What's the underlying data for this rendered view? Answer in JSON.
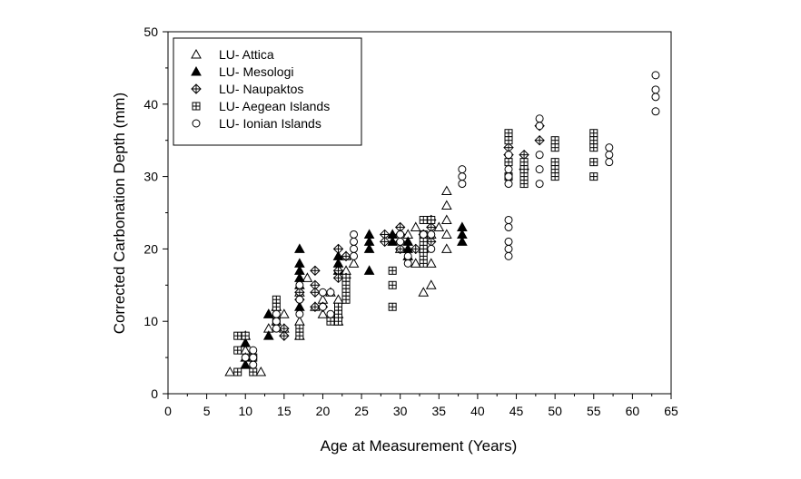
{
  "chart_data": {
    "type": "scatter",
    "title": "",
    "xlabel": "Age at Measurement (Years)",
    "ylabel": "Corrected Carbonation Depth (mm)",
    "xlim": [
      0,
      65
    ],
    "ylim": [
      0,
      50
    ],
    "xticks": [
      0,
      5,
      10,
      15,
      20,
      25,
      30,
      35,
      40,
      45,
      50,
      55,
      60,
      65
    ],
    "yticks": [
      0,
      10,
      20,
      30,
      40,
      50
    ],
    "grid": false,
    "legend_position": "top-left",
    "series": [
      {
        "name": "LU- Attica",
        "marker": "triangle-open",
        "points": [
          [
            8,
            3
          ],
          [
            10,
            8
          ],
          [
            10,
            6
          ],
          [
            12,
            3
          ],
          [
            13,
            11
          ],
          [
            13,
            9
          ],
          [
            14,
            10
          ],
          [
            15,
            11
          ],
          [
            15,
            9
          ],
          [
            17,
            14
          ],
          [
            17,
            10
          ],
          [
            17,
            8
          ],
          [
            18,
            16
          ],
          [
            19,
            12
          ],
          [
            20,
            11
          ],
          [
            20,
            13
          ],
          [
            21,
            14
          ],
          [
            22,
            13
          ],
          [
            22,
            11
          ],
          [
            23,
            19
          ],
          [
            23,
            17
          ],
          [
            24,
            18
          ],
          [
            30,
            20
          ],
          [
            31,
            22
          ],
          [
            32,
            18
          ],
          [
            32,
            23
          ],
          [
            33,
            14
          ],
          [
            33,
            20
          ],
          [
            34,
            15
          ],
          [
            34,
            18
          ],
          [
            34,
            22
          ],
          [
            35,
            23
          ],
          [
            36,
            20
          ],
          [
            36,
            22
          ],
          [
            36,
            24
          ],
          [
            36,
            26
          ],
          [
            36,
            28
          ]
        ]
      },
      {
        "name": "LU- Mesologi",
        "marker": "triangle-filled",
        "points": [
          [
            10,
            7
          ],
          [
            10,
            5
          ],
          [
            10,
            4
          ],
          [
            13,
            8
          ],
          [
            13,
            11
          ],
          [
            14,
            12
          ],
          [
            17,
            20
          ],
          [
            17,
            18
          ],
          [
            17,
            17
          ],
          [
            17,
            16
          ],
          [
            17,
            15
          ],
          [
            17,
            12
          ],
          [
            22,
            19
          ],
          [
            22,
            18
          ],
          [
            22,
            17
          ],
          [
            22,
            10
          ],
          [
            26,
            22
          ],
          [
            26,
            21
          ],
          [
            26,
            20
          ],
          [
            26,
            17
          ],
          [
            29,
            22
          ],
          [
            29,
            21
          ],
          [
            31,
            21
          ],
          [
            31,
            20
          ],
          [
            31,
            19
          ],
          [
            38,
            23
          ],
          [
            38,
            22
          ],
          [
            38,
            21
          ]
        ]
      },
      {
        "name": "LU- Naupaktos",
        "marker": "diamond-cross",
        "points": [
          [
            15,
            9
          ],
          [
            15,
            8
          ],
          [
            17,
            14
          ],
          [
            17,
            13
          ],
          [
            19,
            17
          ],
          [
            19,
            15
          ],
          [
            19,
            14
          ],
          [
            19,
            12
          ],
          [
            20,
            12
          ],
          [
            22,
            20
          ],
          [
            22,
            17
          ],
          [
            22,
            16
          ],
          [
            23,
            19
          ],
          [
            23,
            16
          ],
          [
            28,
            22
          ],
          [
            28,
            21
          ],
          [
            30,
            23
          ],
          [
            30,
            22
          ],
          [
            30,
            21
          ],
          [
            30,
            20
          ],
          [
            32,
            20
          ],
          [
            33,
            22
          ],
          [
            34,
            23
          ],
          [
            34,
            21
          ],
          [
            34,
            24
          ],
          [
            44,
            34
          ],
          [
            44,
            33
          ],
          [
            46,
            33
          ],
          [
            46,
            31
          ],
          [
            48,
            37
          ],
          [
            48,
            35
          ]
        ]
      },
      {
        "name": "LU- Aegean Islands",
        "marker": "square-cross",
        "points": [
          [
            9,
            8
          ],
          [
            9,
            6
          ],
          [
            9,
            3
          ],
          [
            10,
            8
          ],
          [
            11,
            5
          ],
          [
            11,
            3
          ],
          [
            14,
            13
          ],
          [
            14,
            12
          ],
          [
            14,
            10
          ],
          [
            17,
            9
          ],
          [
            17,
            8
          ],
          [
            21,
            10
          ],
          [
            22,
            12
          ],
          [
            22,
            11
          ],
          [
            22,
            10
          ],
          [
            23,
            16
          ],
          [
            23,
            15
          ],
          [
            23,
            14
          ],
          [
            23,
            13
          ],
          [
            29,
            17
          ],
          [
            29,
            15
          ],
          [
            29,
            12
          ],
          [
            33,
            24
          ],
          [
            33,
            22
          ],
          [
            33,
            21
          ],
          [
            33,
            20
          ],
          [
            33,
            19
          ],
          [
            33,
            18
          ],
          [
            34,
            24
          ],
          [
            44,
            36
          ],
          [
            44,
            35
          ],
          [
            44,
            32
          ],
          [
            44,
            30
          ],
          [
            46,
            32
          ],
          [
            46,
            31
          ],
          [
            46,
            30
          ],
          [
            46,
            29
          ],
          [
            50,
            35
          ],
          [
            50,
            34
          ],
          [
            50,
            32
          ],
          [
            50,
            31
          ],
          [
            50,
            30
          ],
          [
            55,
            36
          ],
          [
            55,
            35
          ],
          [
            55,
            34
          ],
          [
            55,
            32
          ],
          [
            55,
            30
          ]
        ]
      },
      {
        "name": "LU- Ionian Islands",
        "marker": "circle-open",
        "points": [
          [
            10,
            5
          ],
          [
            11,
            6
          ],
          [
            11,
            5
          ],
          [
            11,
            4
          ],
          [
            14,
            11
          ],
          [
            14,
            10
          ],
          [
            14,
            9
          ],
          [
            17,
            15
          ],
          [
            17,
            13
          ],
          [
            17,
            11
          ],
          [
            20,
            14
          ],
          [
            20,
            12
          ],
          [
            21,
            14
          ],
          [
            21,
            11
          ],
          [
            24,
            22
          ],
          [
            24,
            21
          ],
          [
            24,
            20
          ],
          [
            24,
            19
          ],
          [
            30,
            22
          ],
          [
            30,
            21
          ],
          [
            31,
            19
          ],
          [
            31,
            18
          ],
          [
            33,
            22
          ],
          [
            34,
            22
          ],
          [
            34,
            20
          ],
          [
            38,
            31
          ],
          [
            38,
            30
          ],
          [
            38,
            29
          ],
          [
            44,
            33
          ],
          [
            44,
            31
          ],
          [
            44,
            30
          ],
          [
            44,
            29
          ],
          [
            44,
            24
          ],
          [
            44,
            23
          ],
          [
            44,
            21
          ],
          [
            44,
            20
          ],
          [
            44,
            19
          ],
          [
            48,
            38
          ],
          [
            48,
            37
          ],
          [
            48,
            33
          ],
          [
            48,
            31
          ],
          [
            48,
            29
          ],
          [
            57,
            34
          ],
          [
            57,
            33
          ],
          [
            57,
            32
          ],
          [
            63,
            44
          ],
          [
            63,
            42
          ],
          [
            63,
            41
          ],
          [
            63,
            39
          ]
        ]
      }
    ]
  }
}
